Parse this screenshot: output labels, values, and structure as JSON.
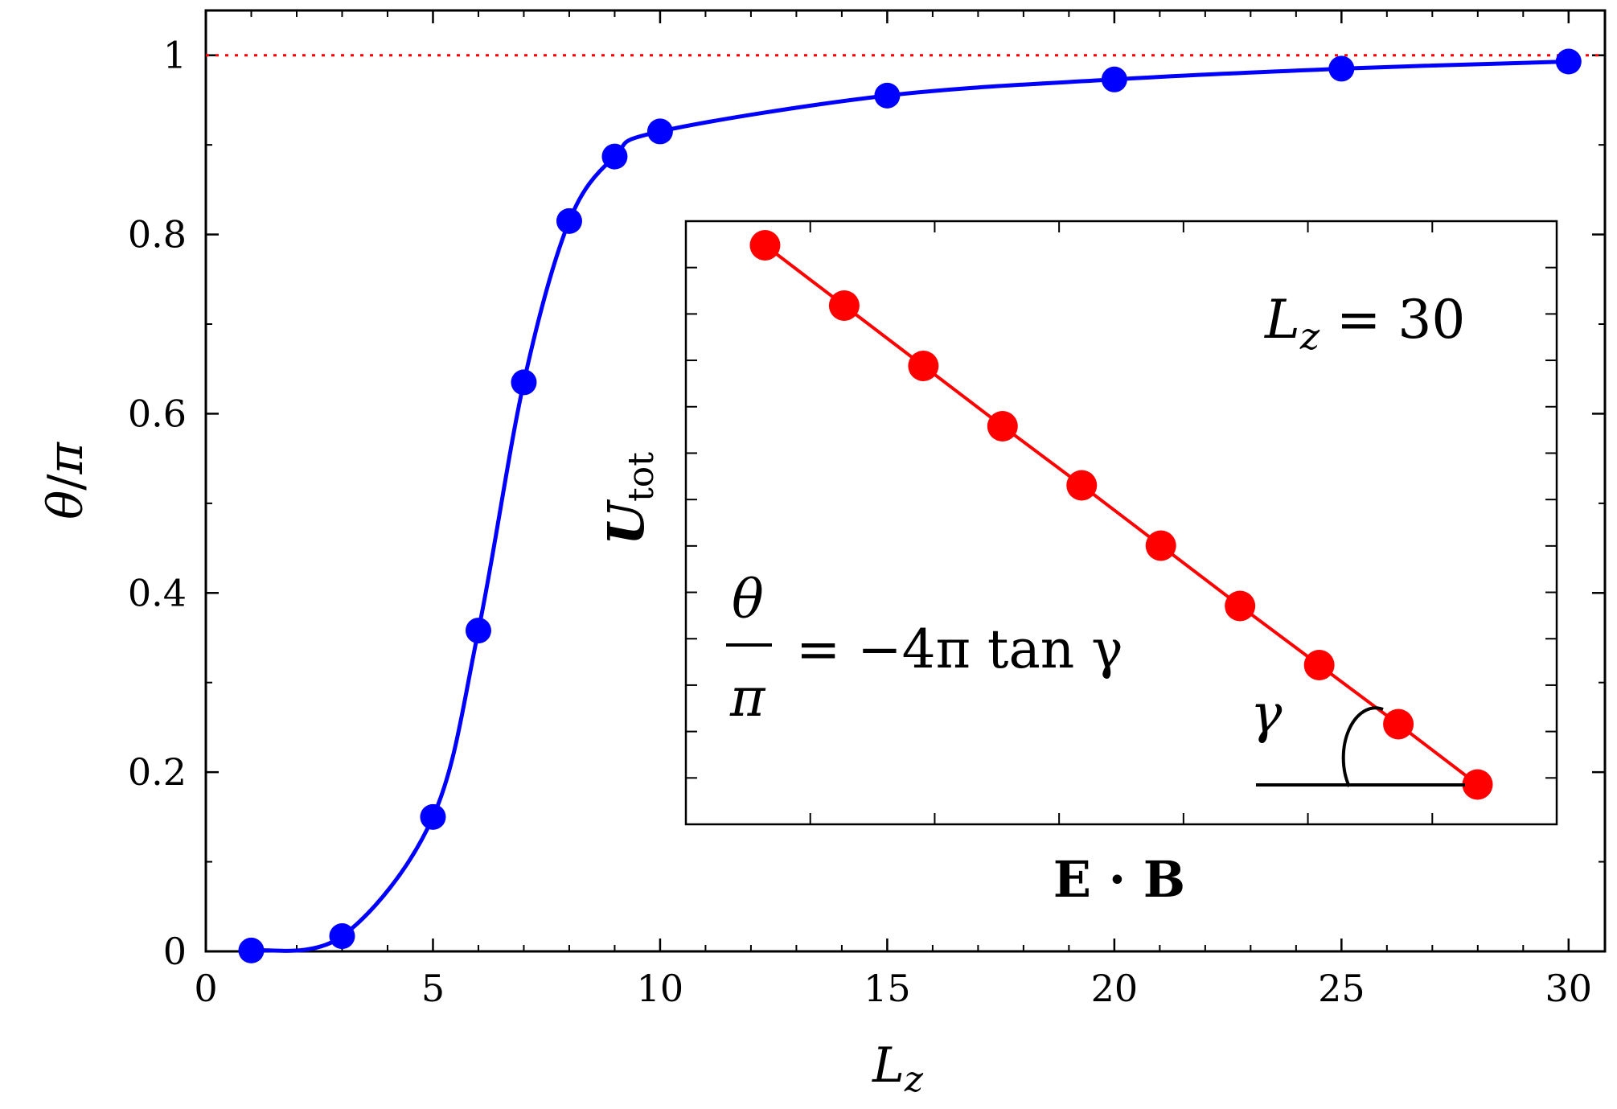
{
  "chart_data": [
    {
      "type": "line",
      "xlabel": "L_z",
      "ylabel": "θ/π",
      "xlim": [
        0,
        30.8
      ],
      "ylim": [
        0,
        1.05
      ],
      "x_ticks": [
        0,
        5,
        10,
        15,
        20,
        25,
        30
      ],
      "y_ticks": [
        0,
        0.2,
        0.4,
        0.6,
        0.8,
        1
      ],
      "grid": false,
      "reference_line": {
        "y": 1,
        "color": "#ff0000",
        "style": "dotted"
      },
      "series": [
        {
          "color": "#0000ff",
          "x": [
            1,
            3,
            5,
            6,
            7,
            8,
            9,
            10,
            15,
            20,
            25,
            30
          ],
          "y": [
            0.001,
            0.017,
            0.15,
            0.358,
            0.635,
            0.815,
            0.887,
            0.915,
            0.955,
            0.973,
            0.985,
            0.993
          ]
        }
      ]
    },
    {
      "type": "line",
      "xlabel": "E · B",
      "ylabel": "U_tot",
      "xlim": [
        0,
        11
      ],
      "ylim": [
        0,
        10
      ],
      "annotations": [
        "L_z = 30",
        "θ/π = −4π tan γ",
        "γ"
      ],
      "series": [
        {
          "color": "#ff0000",
          "x": [
            1,
            2,
            3,
            4,
            5,
            6,
            7,
            8,
            9,
            10
          ],
          "y": [
            9.6,
            8.6,
            7.6,
            6.6,
            5.62,
            4.62,
            3.62,
            2.64,
            1.66,
            0.66
          ]
        }
      ]
    }
  ],
  "labels": {
    "x_axis_var": "L",
    "x_axis_sub": "z",
    "y_axis_theta": "θ",
    "y_axis_slash": "/",
    "y_axis_pi": "π",
    "inset_ylabel_main": "U",
    "inset_ylabel_sub": "tot",
    "inset_xlabel": "E · B",
    "inset_lz_var": "L",
    "inset_lz_sub": "z",
    "inset_lz_rest": " = 30",
    "formula_num": "θ",
    "formula_den": "π",
    "formula_rest": "= −4π tan γ",
    "gamma": "γ"
  },
  "colors": {
    "main_series": "#0000ff",
    "inset_series": "#ff0000",
    "reference_line": "#ff0000"
  }
}
